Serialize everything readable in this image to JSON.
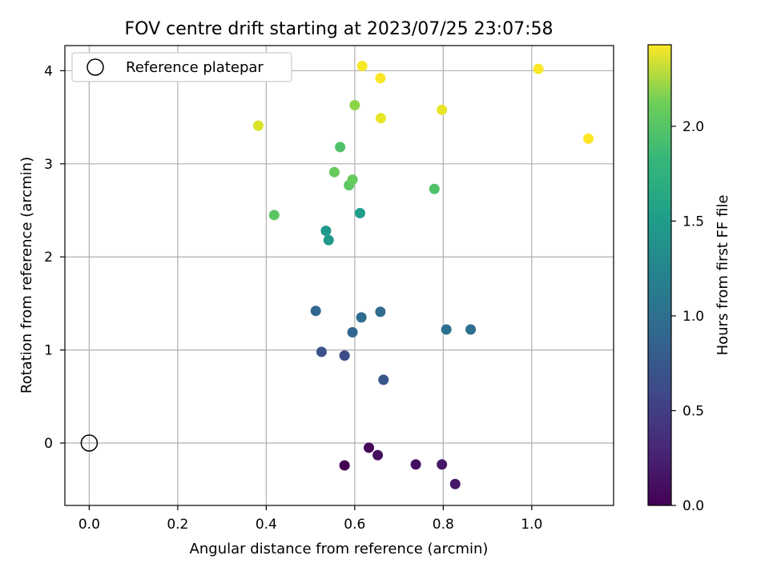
{
  "chart_data": {
    "type": "scatter",
    "title": "FOV centre drift starting at 2023/07/25 23:07:58",
    "xlabel": "Angular distance from reference (arcmin)",
    "ylabel": "Rotation from reference (arcmin)",
    "xlim": [
      -0.055,
      1.185
    ],
    "ylim": [
      -0.67,
      4.27
    ],
    "xticks": [
      0.0,
      0.2,
      0.4,
      0.6,
      0.8,
      1.0
    ],
    "xtick_labels": [
      "0.0",
      "0.2",
      "0.4",
      "0.6",
      "0.8",
      "1.0"
    ],
    "yticks": [
      0,
      1,
      2,
      3,
      4
    ],
    "ytick_labels": [
      "0",
      "1",
      "2",
      "3",
      "4"
    ],
    "grid": true,
    "legend": {
      "placement": "top-left",
      "entries": [
        "Reference platepar"
      ]
    },
    "reference_point": {
      "name": "Reference platepar",
      "x": 0.0,
      "y": 0.0
    },
    "colorbar": {
      "label": "Hours from first FF file",
      "colormap": "viridis",
      "range": [
        0.0,
        2.43
      ],
      "ticks": [
        0.0,
        0.5,
        1.0,
        1.5,
        2.0
      ],
      "tick_labels": [
        "0.0",
        "0.5",
        "1.0",
        "1.5",
        "2.0"
      ]
    },
    "points": [
      {
        "x": 0.577,
        "y": -0.24,
        "c": 0.0
      },
      {
        "x": 0.632,
        "y": -0.05,
        "c": 0.05
      },
      {
        "x": 0.652,
        "y": -0.13,
        "c": 0.1
      },
      {
        "x": 0.738,
        "y": -0.23,
        "c": 0.1
      },
      {
        "x": 0.797,
        "y": -0.23,
        "c": 0.15
      },
      {
        "x": 0.827,
        "y": -0.44,
        "c": 0.15
      },
      {
        "x": 0.577,
        "y": 0.94,
        "c": 0.55
      },
      {
        "x": 0.525,
        "y": 0.98,
        "c": 0.6
      },
      {
        "x": 0.665,
        "y": 0.68,
        "c": 0.65
      },
      {
        "x": 0.595,
        "y": 1.19,
        "c": 0.8
      },
      {
        "x": 0.512,
        "y": 1.42,
        "c": 0.8
      },
      {
        "x": 0.615,
        "y": 1.35,
        "c": 0.85
      },
      {
        "x": 0.658,
        "y": 1.41,
        "c": 0.85
      },
      {
        "x": 0.807,
        "y": 1.22,
        "c": 0.9
      },
      {
        "x": 0.862,
        "y": 1.22,
        "c": 0.9
      },
      {
        "x": 0.535,
        "y": 2.28,
        "c": 1.3
      },
      {
        "x": 0.541,
        "y": 2.18,
        "c": 1.3
      },
      {
        "x": 0.612,
        "y": 2.47,
        "c": 1.35
      },
      {
        "x": 0.78,
        "y": 2.73,
        "c": 1.75
      },
      {
        "x": 0.418,
        "y": 2.45,
        "c": 1.8
      },
      {
        "x": 0.587,
        "y": 2.77,
        "c": 1.8
      },
      {
        "x": 0.595,
        "y": 2.83,
        "c": 1.85
      },
      {
        "x": 0.554,
        "y": 2.91,
        "c": 1.85
      },
      {
        "x": 0.567,
        "y": 3.18,
        "c": 1.75
      },
      {
        "x": 0.6,
        "y": 3.63,
        "c": 2.0
      },
      {
        "x": 0.382,
        "y": 3.41,
        "c": 2.3
      },
      {
        "x": 0.659,
        "y": 3.49,
        "c": 2.35
      },
      {
        "x": 0.797,
        "y": 3.58,
        "c": 2.35
      },
      {
        "x": 0.617,
        "y": 4.05,
        "c": 2.4
      },
      {
        "x": 0.658,
        "y": 3.92,
        "c": 2.42
      },
      {
        "x": 1.015,
        "y": 4.02,
        "c": 2.42
      },
      {
        "x": 1.128,
        "y": 3.27,
        "c": 2.43
      }
    ]
  }
}
